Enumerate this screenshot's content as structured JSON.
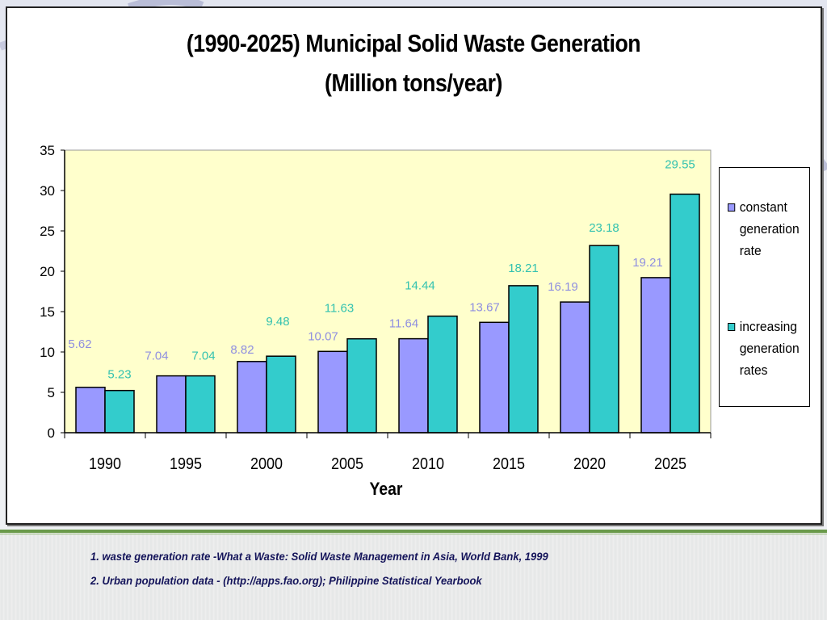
{
  "slide": {
    "footnotes": [
      "1. waste generation rate  -What a Waste: Solid Waste Management in Asia, World Bank, 1999",
      "2. Urban population data - (http://apps.fao.org); Philippine Statistical Yearbook"
    ],
    "colors": {
      "accent_rule": "#6a9a4a",
      "footnote_text": "#14145a"
    }
  },
  "chart_data": {
    "type": "bar",
    "title": "(1990-2025) Municipal Solid Waste Generation",
    "subtitle": "(Million tons/year)",
    "xlabel": "Year",
    "ylabel": "",
    "categories": [
      "1990",
      "1995",
      "2000",
      "2005",
      "2010",
      "2015",
      "2020",
      "2025"
    ],
    "series": [
      {
        "name": "constant generation rate",
        "color": "#9999ff",
        "label_color": "#8f8fe0",
        "values": [
          5.62,
          7.04,
          8.82,
          10.07,
          11.64,
          13.67,
          16.19,
          19.21
        ]
      },
      {
        "name": "increasing generation rates",
        "color": "#33cccc",
        "label_color": "#33c2b0",
        "values": [
          5.23,
          7.04,
          9.48,
          11.63,
          14.44,
          18.21,
          23.18,
          29.55
        ]
      }
    ],
    "ylim": [
      0,
      35
    ],
    "yticks": [
      0,
      5,
      10,
      15,
      20,
      25,
      30,
      35
    ],
    "grid": false,
    "plot_background": "#ffffcc",
    "legend_position": "right"
  }
}
